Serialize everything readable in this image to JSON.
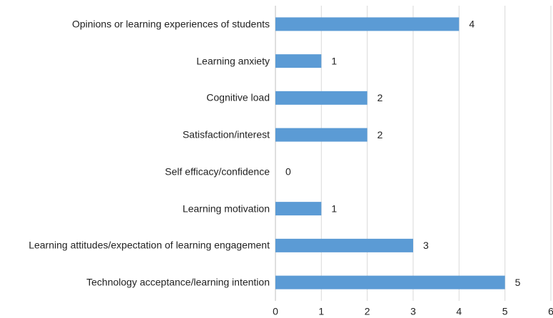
{
  "chart_data": {
    "type": "bar",
    "orientation": "horizontal",
    "categories": [
      "Opinions or learning experiences of students",
      "Learning anxiety",
      "Cognitive load",
      "Satisfaction/interest",
      "Self efficacy/confidence",
      "Learning motivation",
      "Learning attitudes/expectation of learning engagement",
      "Technology acceptance/learning intention"
    ],
    "values": [
      4,
      1,
      2,
      2,
      0,
      1,
      3,
      5
    ],
    "color": "#5b9bd5",
    "xlim": [
      0,
      6
    ],
    "xticks": [
      0,
      1,
      2,
      3,
      4,
      5,
      6
    ],
    "grid": true
  }
}
